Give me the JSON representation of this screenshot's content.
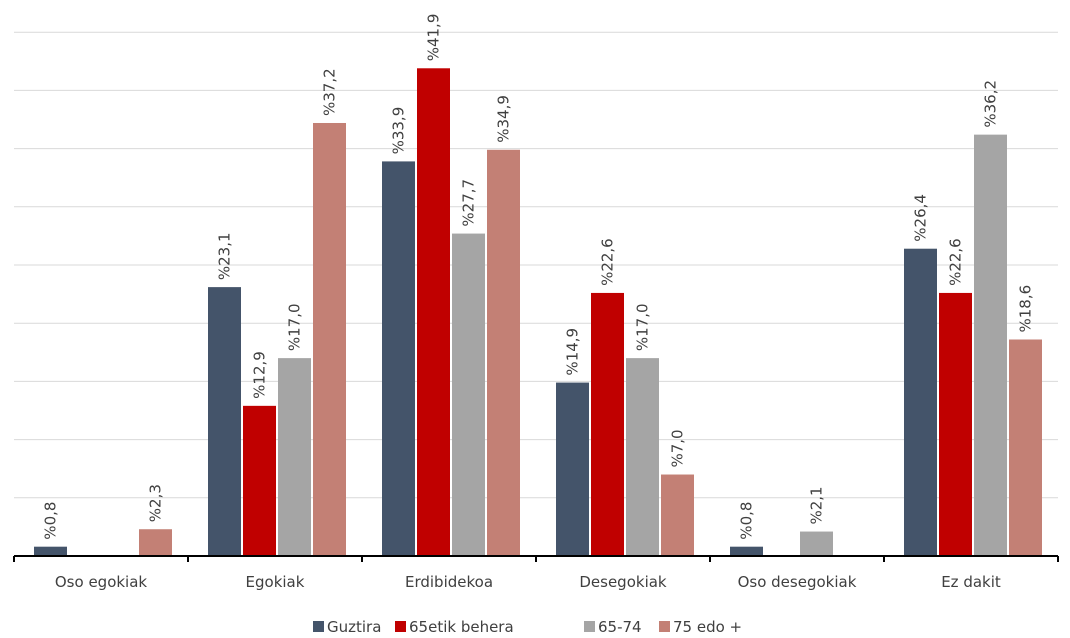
{
  "chart_data": {
    "type": "bar",
    "title": "",
    "xlabel": "",
    "ylabel": "",
    "ylim": [
      0,
      45
    ],
    "grid": true,
    "legend_position": "bottom",
    "value_prefix": "%",
    "categories": [
      "Oso egokiak",
      "Egokiak",
      "Erdibidekoa",
      "Desegokiak",
      "Oso desegokiak",
      "Ez dakit"
    ],
    "series": [
      {
        "name": "Guztira",
        "color": "#44546A",
        "values": [
          0.8,
          23.1,
          33.9,
          14.9,
          0.8,
          26.4
        ],
        "labels": [
          "%0,8",
          "%23,1",
          "%33,9",
          "%14,9",
          "%0,8",
          "%26,4"
        ]
      },
      {
        "name": "65etik behera",
        "color": "#C00000",
        "values": [
          0,
          12.9,
          41.9,
          22.6,
          0,
          22.6
        ],
        "labels": [
          "",
          "%12,9",
          "%41,9",
          "%22,6",
          "",
          "%22,6"
        ]
      },
      {
        "name": "65-74",
        "color": "#A5A5A5",
        "values": [
          0,
          17.0,
          27.7,
          17.0,
          2.1,
          36.2
        ],
        "labels": [
          "",
          "%17,0",
          "%27,7",
          "%17,0",
          "%2,1",
          "%36,2"
        ]
      },
      {
        "name": "75 edo +",
        "color": "#C38075",
        "values": [
          2.3,
          37.2,
          34.9,
          7.0,
          0,
          18.6
        ],
        "labels": [
          "%2,3",
          "%37,2",
          "%34,9",
          "%7,0",
          "",
          "%18,6"
        ]
      }
    ]
  }
}
